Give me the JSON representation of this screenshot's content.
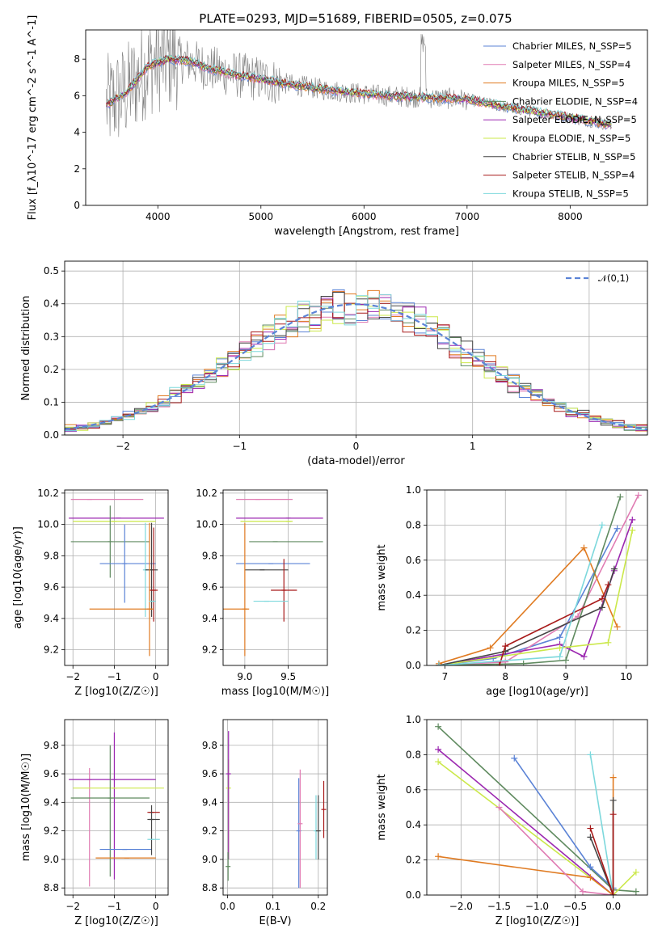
{
  "chart_data": [
    {
      "type": "line",
      "title": "PLATE=0293, MJD=51689, FIBERID=0505, z=0.075",
      "xlabel": "wavelength [Angstrom, rest frame]",
      "ylabel": "Flux [f_λ10^-17 erg cm^-2 s^-1 A^-1]",
      "xlim": [
        3300,
        8750
      ],
      "ylim": [
        0,
        9.6
      ],
      "xticks": [
        4000,
        5000,
        6000,
        7000,
        8000
      ],
      "yticks": [
        0,
        2,
        4,
        6,
        8
      ],
      "grid": false,
      "legend_position": "top-right",
      "observed_color": "#808080",
      "series": [
        {
          "name": "Chabrier MILES, N_SSP=5",
          "color": "#5b83d6"
        },
        {
          "name": "Salpeter MILES, N_SSP=4",
          "color": "#e07cb3"
        },
        {
          "name": "Kroupa MILES, N_SSP=5",
          "color": "#e07b22"
        },
        {
          "name": "Chabrier ELODIE, N_SSP=4",
          "color": "#5f8a5f"
        },
        {
          "name": "Salpeter ELODIE, N_SSP=5",
          "color": "#9b27b0"
        },
        {
          "name": "Kroupa ELODIE, N_SSP=5",
          "color": "#cbe84a"
        },
        {
          "name": "Chabrier STELIB, N_SSP=5",
          "color": "#454545"
        },
        {
          "name": "Salpeter STELIB, N_SSP=4",
          "color": "#a81a1a"
        },
        {
          "name": "Kroupa STELIB, N_SSP=5",
          "color": "#7dd8dc"
        }
      ],
      "continuum": {
        "x": [
          3500,
          3700,
          3900,
          4100,
          4300,
          4500,
          4700,
          5000,
          5300,
          5600,
          5900,
          6200,
          6600,
          7000,
          7400,
          7800,
          8200,
          8400
        ],
        "y": [
          5.5,
          6.2,
          7.6,
          8.0,
          7.9,
          7.5,
          7.2,
          6.9,
          6.6,
          6.35,
          6.15,
          6.0,
          5.9,
          5.8,
          5.35,
          5.0,
          4.6,
          4.4
        ]
      }
    },
    {
      "type": "histogram",
      "xlabel": "(data-model)/error",
      "ylabel": "Normed distribution",
      "xlim": [
        -2.5,
        2.5
      ],
      "ylim": [
        0,
        0.53
      ],
      "xticks": [
        -2,
        -1,
        0,
        1,
        2
      ],
      "yticks": [
        0.0,
        0.1,
        0.2,
        0.3,
        0.4,
        0.5
      ],
      "grid": true,
      "legend_position": "top-right",
      "reference": {
        "name": "𝒩(0,1)",
        "color": "#5b83d6",
        "style": "dashed"
      },
      "bin_width": 0.1,
      "bin_start": -2.5
    },
    {
      "type": "errorbar",
      "xlabel": "Z [log10(Z/Z☉)]",
      "ylabel": "age [log10(age/yr)]",
      "xlim": [
        -2.2,
        0.3
      ],
      "ylim": [
        9.1,
        10.22
      ],
      "xticks": [
        -2,
        -1,
        0
      ],
      "yticks": [
        9.2,
        9.4,
        9.6,
        9.8,
        10.0,
        10.2
      ],
      "points": [
        {
          "x": -1.6,
          "y": 10.16,
          "xerr": [
            0.45,
            1.3
          ],
          "yerr": [
            0.0,
            0.0
          ],
          "color": "#e07cb3"
        },
        {
          "x": -0.9,
          "y": 10.04,
          "xerr": [
            1.2,
            1.1
          ],
          "yerr": [
            0.0,
            0.0
          ],
          "color": "#9b27b0"
        },
        {
          "x": -1.0,
          "y": 10.02,
          "xerr": [
            1.0,
            1.0
          ],
          "yerr": [
            0.0,
            0.0
          ],
          "color": "#cbe84a"
        },
        {
          "x": -1.1,
          "y": 9.89,
          "xerr": [
            0.95,
            0.95
          ],
          "yerr": [
            0.23,
            0.23
          ],
          "color": "#5f8a5f"
        },
        {
          "x": -0.75,
          "y": 9.75,
          "xerr": [
            0.6,
            0.75
          ],
          "yerr": [
            0.25,
            0.25
          ],
          "color": "#5b83d6"
        },
        {
          "x": -0.25,
          "y": 9.71,
          "xerr": [
            0.0,
            0.0
          ],
          "yerr": [
            0.3,
            0.3
          ],
          "color": "#7dd8dc"
        },
        {
          "x": -0.1,
          "y": 9.71,
          "xerr": [
            0.15,
            0.15
          ],
          "yerr": [
            0.3,
            0.3
          ],
          "color": "#454545"
        },
        {
          "x": -0.05,
          "y": 9.58,
          "xerr": [
            0.1,
            0.1
          ],
          "yerr": [
            0.2,
            0.4
          ],
          "color": "#a81a1a"
        },
        {
          "x": -0.15,
          "y": 9.46,
          "xerr": [
            1.45,
            0.1
          ],
          "yerr": [
            0.3,
            0.55
          ],
          "color": "#e07b22"
        },
        {
          "x": -0.1,
          "y": 9.51,
          "xerr": [
            0.05,
            0.1
          ],
          "yerr": [
            0.0,
            0.0
          ],
          "color": "#7dd8dc"
        }
      ]
    },
    {
      "type": "errorbar",
      "xlabel": "mass [log10(M/M☉)]",
      "xlim": [
        8.75,
        9.95
      ],
      "ylim": [
        9.1,
        10.22
      ],
      "xticks": [
        9.0,
        9.5
      ],
      "yticks": [
        9.2,
        9.4,
        9.6,
        9.8,
        10.0,
        10.2
      ],
      "points": [
        {
          "x": 9.15,
          "y": 10.16,
          "xerr": [
            0.25,
            0.4
          ],
          "yerr": [
            0.0,
            0.0
          ],
          "color": "#e07cb3"
        },
        {
          "x": 9.5,
          "y": 10.04,
          "xerr": [
            0.6,
            0.4
          ],
          "yerr": [
            0.0,
            0.0
          ],
          "color": "#9b27b0"
        },
        {
          "x": 9.5,
          "y": 10.02,
          "xerr": [
            0.55,
            0.05
          ],
          "yerr": [
            0.0,
            0.0
          ],
          "color": "#cbe84a"
        },
        {
          "x": 9.35,
          "y": 9.89,
          "xerr": [
            0.3,
            0.55
          ],
          "yerr": [
            0.0,
            0.0
          ],
          "color": "#5f8a5f"
        },
        {
          "x": 9.3,
          "y": 9.75,
          "xerr": [
            0.4,
            0.45
          ],
          "yerr": [
            0.0,
            0.0
          ],
          "color": "#5b83d6"
        },
        {
          "x": 9.2,
          "y": 9.71,
          "xerr": [
            0.2,
            0.3
          ],
          "yerr": [
            0.0,
            0.0
          ],
          "color": "#454545"
        },
        {
          "x": 9.45,
          "y": 9.58,
          "xerr": [
            0.15,
            0.15
          ],
          "yerr": [
            0.2,
            0.2
          ],
          "color": "#a81a1a"
        },
        {
          "x": 9.25,
          "y": 9.51,
          "xerr": [
            0.15,
            0.25
          ],
          "yerr": [
            0.0,
            0.0
          ],
          "color": "#7dd8dc"
        },
        {
          "x": 9.0,
          "y": 9.46,
          "xerr": [
            0.25,
            0.05
          ],
          "yerr": [
            0.3,
            0.55
          ],
          "color": "#e07b22"
        }
      ]
    },
    {
      "type": "line",
      "xlabel": "age [log10(age/yr)]",
      "ylabel": "mass weight",
      "xlim": [
        6.7,
        10.35
      ],
      "ylim": [
        0,
        1.0
      ],
      "xticks": [
        7,
        8,
        9,
        10
      ],
      "yticks": [
        0.0,
        0.2,
        0.4,
        0.6,
        0.8,
        1.0
      ],
      "grid": true,
      "series": [
        {
          "color": "#5b83d6",
          "x": [
            6.9,
            7.8,
            8.9,
            9.85
          ],
          "y": [
            0.0,
            0.04,
            0.16,
            0.78
          ]
        },
        {
          "color": "#e07cb3",
          "x": [
            6.9,
            8.0,
            9.2,
            10.2
          ],
          "y": [
            0.0,
            0.02,
            0.28,
            0.97
          ]
        },
        {
          "color": "#e07b22",
          "x": [
            6.9,
            7.75,
            9.3,
            9.85
          ],
          "y": [
            0.01,
            0.1,
            0.67,
            0.22
          ]
        },
        {
          "color": "#5f8a5f",
          "x": [
            6.9,
            8.3,
            9.0,
            9.9
          ],
          "y": [
            0.0,
            0.01,
            0.03,
            0.96
          ]
        },
        {
          "color": "#9b27b0",
          "x": [
            6.9,
            8.9,
            9.3,
            9.8,
            10.1
          ],
          "y": [
            0.0,
            0.12,
            0.05,
            0.54,
            0.83
          ]
        },
        {
          "color": "#cbe84a",
          "x": [
            6.9,
            8.9,
            9.7,
            10.1
          ],
          "y": [
            0.0,
            0.1,
            0.13,
            0.77
          ]
        },
        {
          "color": "#454545",
          "x": [
            6.9,
            8.0,
            9.6,
            9.8
          ],
          "y": [
            0.0,
            0.08,
            0.33,
            0.55
          ]
        },
        {
          "color": "#a81a1a",
          "x": [
            7.9,
            8.0,
            9.6,
            9.7
          ],
          "y": [
            0.0,
            0.11,
            0.38,
            0.46
          ]
        },
        {
          "color": "#7dd8dc",
          "x": [
            6.9,
            8.9,
            9.6
          ],
          "y": [
            0.0,
            0.05,
            0.8
          ]
        }
      ]
    },
    {
      "type": "errorbar",
      "xlabel": "Z [log10(Z/Z☉)]",
      "ylabel": "mass [log10(M/M☉)]",
      "xlim": [
        -2.2,
        0.3
      ],
      "ylim": [
        8.75,
        9.98
      ],
      "xticks": [
        -2,
        -1,
        0
      ],
      "yticks": [
        8.8,
        9.0,
        9.2,
        9.4,
        9.6,
        9.8
      ],
      "points": [
        {
          "x": -1.6,
          "y": 9.56,
          "xerr": [
            0.0,
            0.0
          ],
          "yerr": [
            0.75,
            0.08
          ],
          "color": "#e07cb3"
        },
        {
          "x": -1.0,
          "y": 9.56,
          "xerr": [
            1.1,
            1.0
          ],
          "yerr": [
            0.7,
            0.33
          ],
          "color": "#9b27b0"
        },
        {
          "x": -1.0,
          "y": 9.5,
          "xerr": [
            1.0,
            1.2
          ],
          "yerr": [
            0.0,
            0.0
          ],
          "color": "#cbe84a"
        },
        {
          "x": -1.1,
          "y": 9.43,
          "xerr": [
            0.95,
            0.95
          ],
          "yerr": [
            0.55,
            0.37
          ],
          "color": "#5f8a5f"
        },
        {
          "x": -0.75,
          "y": 9.07,
          "xerr": [
            0.6,
            0.65
          ],
          "yerr": [
            0.0,
            0.0
          ],
          "color": "#5b83d6"
        },
        {
          "x": -0.7,
          "y": 9.01,
          "xerr": [
            0.75,
            0.7
          ],
          "yerr": [
            0.0,
            0.0
          ],
          "color": "#e07b22"
        },
        {
          "x": -0.1,
          "y": 9.33,
          "xerr": [
            0.1,
            0.2
          ],
          "yerr": [
            0.0,
            0.0
          ],
          "color": "#a81a1a"
        },
        {
          "x": -0.1,
          "y": 9.28,
          "xerr": [
            0.1,
            0.2
          ],
          "yerr": [
            0.25,
            0.1
          ],
          "color": "#454545"
        },
        {
          "x": -0.1,
          "y": 9.14,
          "xerr": [
            0.1,
            0.2
          ],
          "yerr": [
            0.0,
            0.0
          ],
          "color": "#7dd8dc"
        }
      ]
    },
    {
      "type": "errorbar",
      "xlabel": "E(B-V)",
      "xlim": [
        -0.01,
        0.22
      ],
      "ylim": [
        8.75,
        9.98
      ],
      "xticks": [
        0.0,
        0.1,
        0.2
      ],
      "yticks": [
        8.8,
        9.0,
        9.2,
        9.4,
        9.6,
        9.8
      ],
      "points": [
        {
          "x": 0.002,
          "y": 9.5,
          "xerr": [
            0.0,
            0.0
          ],
          "yerr": [
            0.5,
            0.2
          ],
          "color": "#cbe84a"
        },
        {
          "x": 0.002,
          "y": 9.6,
          "xerr": [
            0.0,
            0.0
          ],
          "yerr": [
            0.6,
            0.3
          ],
          "color": "#9b27b0"
        },
        {
          "x": 0.157,
          "y": 9.2,
          "xerr": [
            0.0,
            0.0
          ],
          "yerr": [
            0.4,
            0.37
          ],
          "color": "#5b83d6"
        },
        {
          "x": 0.16,
          "y": 9.25,
          "xerr": [
            0.0,
            0.0
          ],
          "yerr": [
            0.45,
            0.38
          ],
          "color": "#e07cb3"
        },
        {
          "x": 0.195,
          "y": 9.2,
          "xerr": [
            0.0,
            0.0
          ],
          "yerr": [
            0.2,
            0.25
          ],
          "color": "#7dd8dc"
        },
        {
          "x": 0.2,
          "y": 9.2,
          "xerr": [
            0.0,
            0.0
          ],
          "yerr": [
            0.2,
            0.25
          ],
          "color": "#454545"
        },
        {
          "x": 0.212,
          "y": 9.35,
          "xerr": [
            0.0,
            0.0
          ],
          "yerr": [
            0.2,
            0.2
          ],
          "color": "#a81a1a"
        },
        {
          "x": 0.001,
          "y": 8.95,
          "xerr": [
            0.0,
            0.0
          ],
          "yerr": [
            0.1,
            0.1
          ],
          "color": "#5f8a5f"
        }
      ]
    },
    {
      "type": "line",
      "xlabel": "Z [log10(Z/Z☉)]",
      "ylabel": "mass weight",
      "xlim": [
        -2.45,
        0.45
      ],
      "ylim": [
        0,
        1.0
      ],
      "xticks": [
        -2.0,
        -1.5,
        -1.0,
        -0.5,
        0.0
      ],
      "yticks": [
        0.0,
        0.2,
        0.4,
        0.6,
        0.8,
        1.0
      ],
      "grid": true,
      "series": [
        {
          "color": "#5f8a5f",
          "x": [
            -2.3,
            0.0,
            0.3
          ],
          "y": [
            0.96,
            0.03,
            0.02
          ]
        },
        {
          "color": "#9b27b0",
          "x": [
            -2.3,
            0.0
          ],
          "y": [
            0.83,
            0.0
          ]
        },
        {
          "color": "#cbe84a",
          "x": [
            -2.3,
            0.0,
            0.3
          ],
          "y": [
            0.76,
            0.0,
            0.13
          ]
        },
        {
          "color": "#5b83d6",
          "x": [
            -1.3,
            -0.3,
            0.0
          ],
          "y": [
            0.78,
            0.16,
            0.04
          ]
        },
        {
          "color": "#e07b22",
          "x": [
            -2.3,
            -0.3,
            0.0,
            0.0
          ],
          "y": [
            0.22,
            0.1,
            0.0,
            0.67
          ]
        },
        {
          "color": "#e07cb3",
          "x": [
            -1.5,
            -0.4,
            0.0
          ],
          "y": [
            0.5,
            0.02,
            0.0
          ]
        },
        {
          "color": "#7dd8dc",
          "x": [
            -0.3,
            0.0
          ],
          "y": [
            0.8,
            0.0
          ]
        },
        {
          "color": "#454545",
          "x": [
            -0.3,
            0.0,
            0.0
          ],
          "y": [
            0.33,
            0.0,
            0.54
          ]
        },
        {
          "color": "#a81a1a",
          "x": [
            -0.3,
            0.0,
            0.0
          ],
          "y": [
            0.38,
            0.0,
            0.46
          ]
        }
      ]
    }
  ]
}
